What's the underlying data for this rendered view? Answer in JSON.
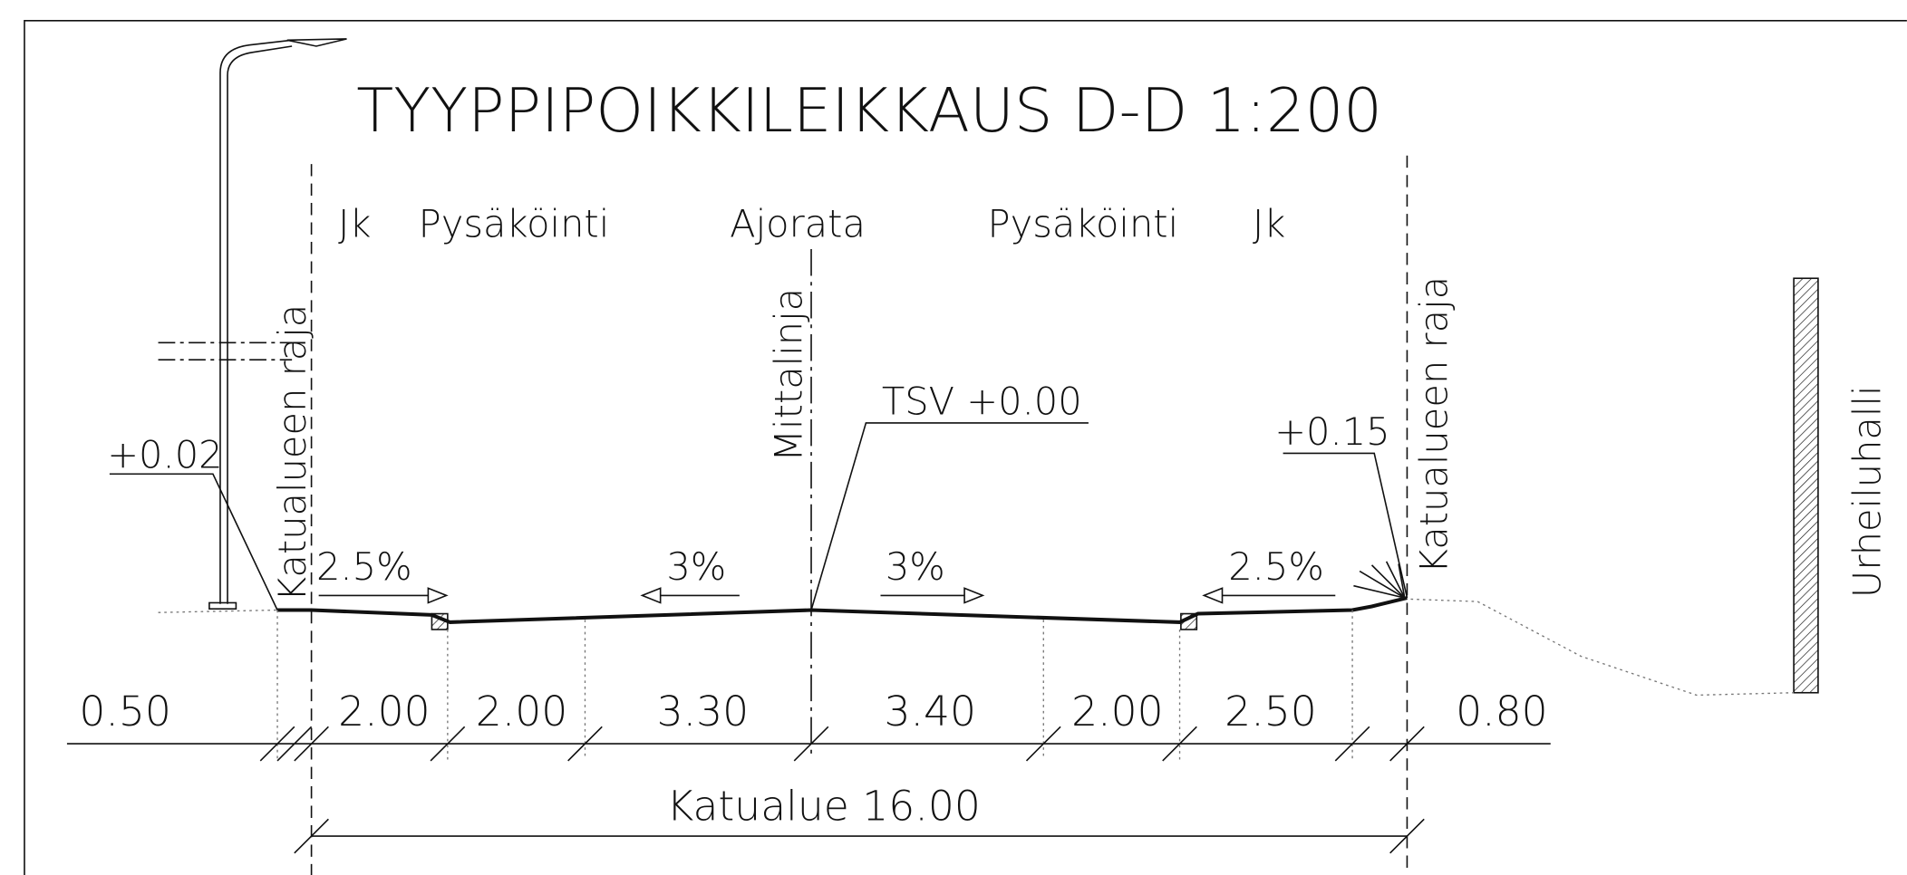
{
  "title": "TYYPPIPOIKKILEIKKAUS D-D  1:200",
  "zones": [
    "Jk",
    "Pysäköinti",
    "Ajorata",
    "Pysäköinti",
    "Jk"
  ],
  "boundary_labels": [
    "Katualueen raja",
    "Katualueen raja"
  ],
  "centerline_label": "Mittalinja",
  "building_label": "Urheiluhalli",
  "elevations": [
    "+0.02",
    "TSV +0.00",
    "+0.15"
  ],
  "slopes": [
    "2.5%",
    "3%",
    "3%",
    "2.5%"
  ],
  "dimensions": [
    "0.50",
    "2.00",
    "2.00",
    "3.30",
    "3.40",
    "2.00",
    "2.50",
    "0.80"
  ],
  "total_dimension": "Katualue 16.00"
}
